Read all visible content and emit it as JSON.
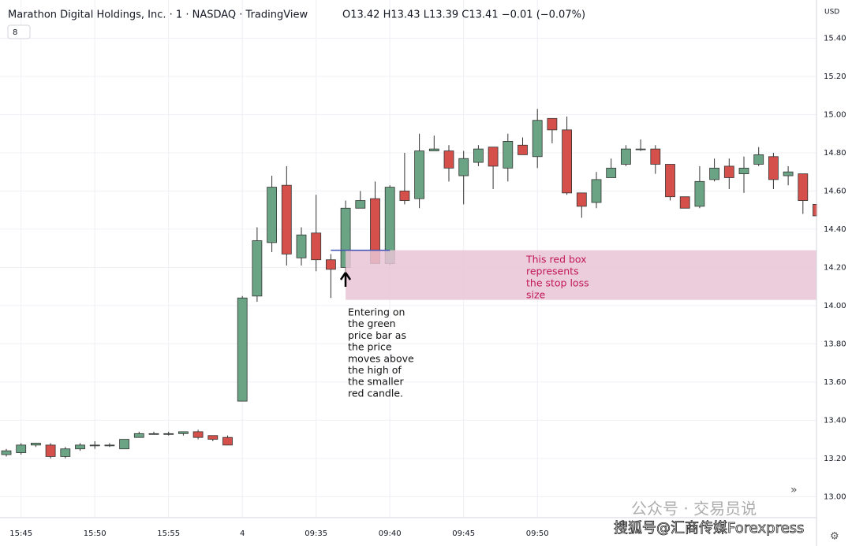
{
  "chart_data": {
    "type": "candlestick",
    "title": "Marathon Digital Holdings, Inc. · 1 · NASDAQ · TradingView",
    "ohlc_legend": "O13.42 H13.43 L13.39 C13.41 −0.01 (−0.07%)",
    "indicator_badge": "8",
    "currency": "USD",
    "categories": [
      null,
      "15:45",
      null,
      null,
      null,
      null,
      "15:50",
      null,
      null,
      null,
      null,
      "15:55",
      null,
      null,
      null,
      null,
      "4",
      null,
      null,
      null,
      null,
      "09:35",
      null,
      null,
      null,
      null,
      "09:40",
      null,
      null,
      null,
      null,
      "09:45",
      null,
      null,
      null,
      null,
      "09:50",
      null,
      null,
      null,
      null,
      null,
      null,
      null,
      null,
      null,
      null,
      null,
      null,
      null,
      null,
      null,
      null,
      null,
      null,
      null
    ],
    "open": [
      13.22,
      13.23,
      13.27,
      13.27,
      13.21,
      13.25,
      13.27,
      13.27,
      13.25,
      13.31,
      13.33,
      13.33,
      13.33,
      13.34,
      13.32,
      13.31,
      13.5,
      14.05,
      14.33,
      14.63,
      14.25,
      14.38,
      14.24,
      14.2,
      14.51,
      14.56,
      14.22,
      14.6,
      14.56,
      14.81,
      14.81,
      14.68,
      14.75,
      14.83,
      14.72,
      14.84,
      14.78,
      14.98,
      14.92,
      14.59,
      14.54,
      14.67,
      14.74,
      14.82,
      14.82,
      14.74,
      14.57,
      14.52,
      14.66,
      14.73,
      14.69,
      14.74,
      14.78,
      14.68,
      14.69,
      14.53
    ],
    "high": [
      13.25,
      13.28,
      13.28,
      13.28,
      13.26,
      13.28,
      13.29,
      13.28,
      13.3,
      13.34,
      13.34,
      13.34,
      13.34,
      13.35,
      13.32,
      13.32,
      14.05,
      14.41,
      14.68,
      14.73,
      14.41,
      14.58,
      14.27,
      14.55,
      14.6,
      14.65,
      14.63,
      14.8,
      14.9,
      14.89,
      14.84,
      14.81,
      14.84,
      14.83,
      14.9,
      14.88,
      15.03,
      14.98,
      14.99,
      14.59,
      14.7,
      14.77,
      14.84,
      14.87,
      14.84,
      14.74,
      14.57,
      14.73,
      14.77,
      14.77,
      14.78,
      14.83,
      14.8,
      14.73,
      14.69,
      14.53
    ],
    "low": [
      13.21,
      13.22,
      13.26,
      13.2,
      13.2,
      13.24,
      13.25,
      13.26,
      13.25,
      13.31,
      13.33,
      13.32,
      13.32,
      13.3,
      13.29,
      13.27,
      13.5,
      14.02,
      14.28,
      14.21,
      14.21,
      14.18,
      14.04,
      14.17,
      14.51,
      14.22,
      14.21,
      14.53,
      14.51,
      14.81,
      14.65,
      14.53,
      14.73,
      14.61,
      14.65,
      14.79,
      14.72,
      14.85,
      14.58,
      14.46,
      14.51,
      14.67,
      14.73,
      14.81,
      14.69,
      14.55,
      14.51,
      14.51,
      14.65,
      14.61,
      14.59,
      14.73,
      14.61,
      14.63,
      14.48,
      14.45
    ],
    "close": [
      13.24,
      13.27,
      13.28,
      13.21,
      13.25,
      13.27,
      13.27,
      13.27,
      13.3,
      13.33,
      13.33,
      13.33,
      13.34,
      13.31,
      13.3,
      13.27,
      14.04,
      14.34,
      14.62,
      14.27,
      14.37,
      14.24,
      14.19,
      14.51,
      14.55,
      14.22,
      14.62,
      14.55,
      14.81,
      14.82,
      14.72,
      14.77,
      14.82,
      14.73,
      14.86,
      14.79,
      14.97,
      14.92,
      14.59,
      14.52,
      14.66,
      14.72,
      14.82,
      14.82,
      14.74,
      14.57,
      14.51,
      14.65,
      14.72,
      14.67,
      14.72,
      14.79,
      14.66,
      14.7,
      14.55,
      14.47
    ],
    "up_color": "#6aa484",
    "down_color": "#d5504a",
    "ylim": [
      12.89,
      15.6
    ],
    "yticks": [
      {
        "value": 13.0,
        "label": "13.00"
      },
      {
        "value": 13.2,
        "label": "13.20"
      },
      {
        "value": 13.4,
        "label": "13.40"
      },
      {
        "value": 13.6,
        "label": "13.60"
      },
      {
        "value": 13.8,
        "label": "13.80"
      },
      {
        "value": 14.0,
        "label": "14.00"
      },
      {
        "value": 14.2,
        "label": "14.20"
      },
      {
        "value": 14.4,
        "label": "14.40"
      },
      {
        "value": 14.6,
        "label": "14.60"
      },
      {
        "value": 14.8,
        "label": "14.80"
      },
      {
        "value": 15.0,
        "label": "15.00"
      },
      {
        "value": 15.2,
        "label": "15.20"
      },
      {
        "value": 15.4,
        "label": "15.40"
      }
    ],
    "grid": true,
    "stop_box": {
      "top": 14.29,
      "bottom": 14.03,
      "color": "#e8c4d5",
      "label": [
        "This red box",
        "represents",
        "the stop loss",
        "size"
      ]
    },
    "entry_line": {
      "value": 14.29,
      "color": "#3f51b5"
    },
    "entry_note": [
      "Entering on",
      "the green",
      "price bar as",
      "the price",
      "moves above",
      "the high of",
      "the smaller",
      "red candle."
    ],
    "watermarks": [
      "公众号 · 交易员说",
      "搜狐号@汇商传媒Forexpress"
    ]
  }
}
